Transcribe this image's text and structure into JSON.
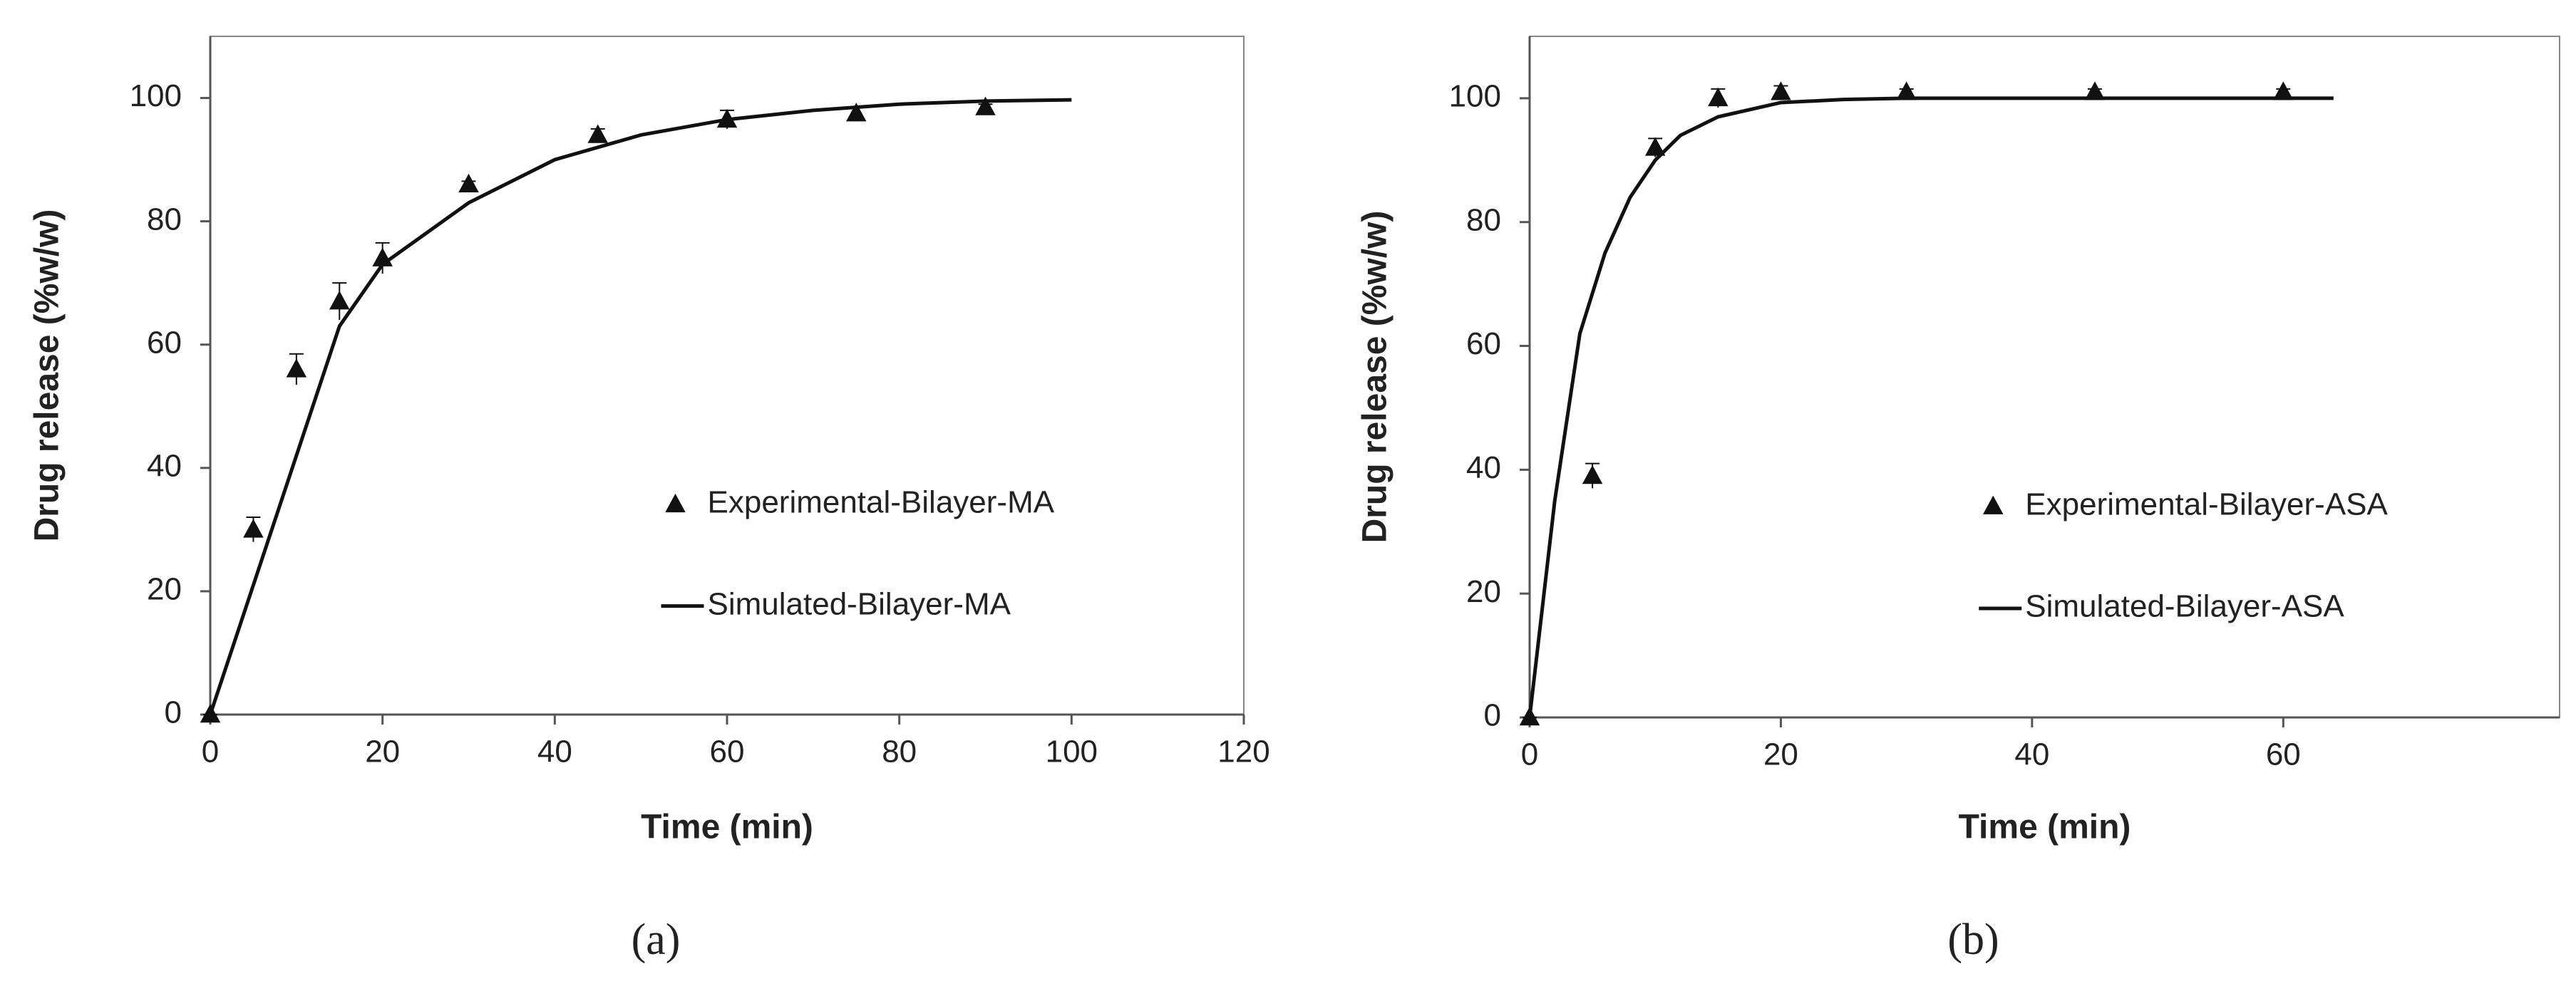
{
  "chart_data": [
    {
      "type": "line",
      "caption": "(a)",
      "xlabel": "Time (min)",
      "ylabel": "Drug release (%w/w)",
      "xlim": [
        0,
        120
      ],
      "xticks": [
        0,
        20,
        40,
        60,
        80,
        100,
        120
      ],
      "ylim": [
        0,
        110
      ],
      "yticks": [
        0,
        20,
        40,
        60,
        80,
        100
      ],
      "legend": "center right",
      "series": [
        {
          "name": "Experimental-Bilayer-MA",
          "mode": "markers",
          "color": "#111111",
          "x": [
            0,
            5,
            10,
            15,
            20,
            30,
            45,
            60,
            75,
            90
          ],
          "values": [
            0,
            30,
            56,
            67,
            74,
            86,
            94,
            96.5,
            97.5,
            98.5
          ],
          "errors": [
            0,
            2,
            2.5,
            3,
            2.5,
            0.5,
            1,
            1.5,
            1,
            0.5
          ]
        },
        {
          "name": "Simulated-Bilayer-MA",
          "mode": "line",
          "color": "#111111",
          "x": [
            0,
            5,
            10,
            15,
            20,
            30,
            40,
            50,
            60,
            70,
            80,
            90,
            100
          ],
          "values": [
            0,
            21,
            42,
            63,
            73,
            83,
            90,
            94,
            96.5,
            98,
            99,
            99.5,
            99.7
          ]
        }
      ]
    },
    {
      "type": "line",
      "caption": "(b)",
      "xlabel": "Time (min)",
      "ylabel": "Drug release (%w/w)",
      "xlim": [
        0,
        82
      ],
      "xticks": [
        0,
        20,
        40,
        60
      ],
      "ylim": [
        0,
        110
      ],
      "yticks": [
        0,
        20,
        40,
        60,
        80,
        100
      ],
      "legend": "center right",
      "series": [
        {
          "name": "Experimental-Bilayer-ASA",
          "mode": "markers",
          "color": "#111111",
          "x": [
            0,
            5,
            10,
            15,
            20,
            30,
            45,
            60
          ],
          "values": [
            0,
            39,
            92,
            100,
            101,
            101,
            101,
            101
          ],
          "errors": [
            0,
            2,
            1.5,
            1.5,
            1,
            0.5,
            0.5,
            0.5
          ]
        },
        {
          "name": "Simulated-Bilayer-ASA",
          "mode": "line",
          "color": "#111111",
          "x": [
            0,
            2,
            4,
            6,
            8,
            10,
            12,
            15,
            20,
            25,
            30,
            40,
            50,
            64
          ],
          "values": [
            0,
            35,
            62,
            75,
            84,
            90,
            94,
            97,
            99.3,
            99.8,
            100,
            100,
            100,
            100
          ]
        }
      ]
    }
  ]
}
